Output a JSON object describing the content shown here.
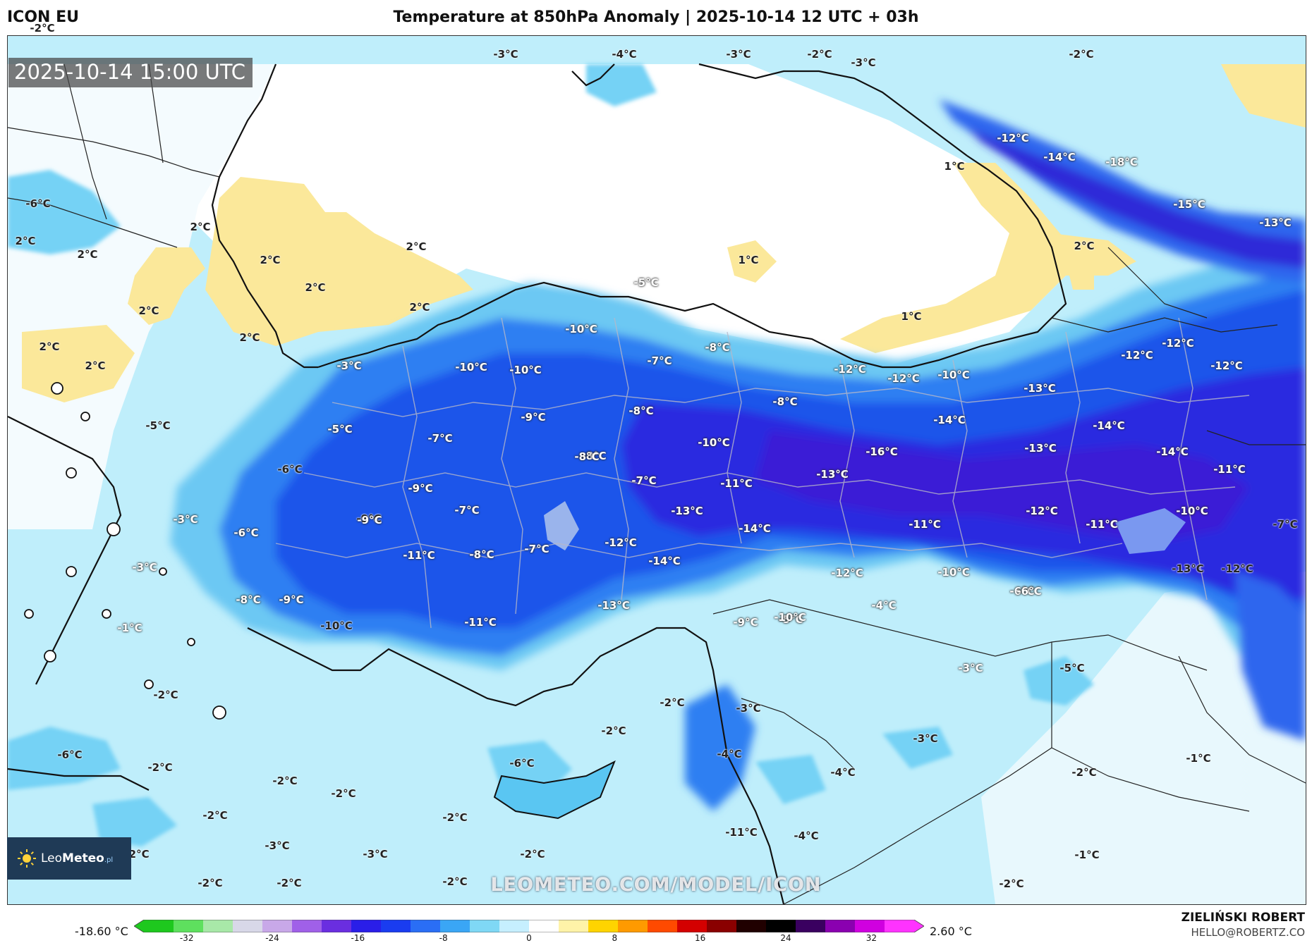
{
  "header": {
    "model": "ICON EU",
    "title": "Temperature at 850hPa Anomaly | 2025-10-14 12 UTC + 03h"
  },
  "map": {
    "valid_time": "2025-10-14 15:00 UTC",
    "watermark": "LEOMETEO.COM/MODEL/ICON",
    "labels": [
      {
        "text": "-2°C"
      },
      {
        "text": "-3°C"
      },
      {
        "text": "-4°C"
      },
      {
        "text": "-3°C"
      },
      {
        "text": "-2°C"
      },
      {
        "text": "-3°C"
      },
      {
        "text": "-2°C"
      },
      {
        "text": "-12°C"
      },
      {
        "text": "-14°C"
      },
      {
        "text": "-18°C"
      },
      {
        "text": "-15°C"
      },
      {
        "text": "-13°C"
      },
      {
        "text": "1°C"
      },
      {
        "text": "-6°C"
      },
      {
        "text": "2°C"
      },
      {
        "text": "2°C"
      },
      {
        "text": "2°C"
      },
      {
        "text": "2°C"
      },
      {
        "text": "2°C"
      },
      {
        "text": "2°C"
      },
      {
        "text": "1°C"
      },
      {
        "text": "2°C"
      },
      {
        "text": "2°C"
      },
      {
        "text": "2°C"
      },
      {
        "text": "2°C"
      },
      {
        "text": "2°C"
      },
      {
        "text": "2°C"
      },
      {
        "text": "-5°C"
      },
      {
        "text": "1°C"
      },
      {
        "text": "-3°C"
      },
      {
        "text": "-10°C"
      },
      {
        "text": "-8°C"
      },
      {
        "text": "-7°C"
      },
      {
        "text": "-12°C"
      },
      {
        "text": "-12°C"
      },
      {
        "text": "-10°C"
      },
      {
        "text": "-13°C"
      },
      {
        "text": "-12°C"
      },
      {
        "text": "-12°C"
      },
      {
        "text": "-12°C"
      },
      {
        "text": "-10°C"
      },
      {
        "text": "-10°C"
      },
      {
        "text": "-9°C"
      },
      {
        "text": "-8°C"
      },
      {
        "text": "-8°C"
      },
      {
        "text": "-14°C"
      },
      {
        "text": "-14°C"
      },
      {
        "text": "-5°C"
      },
      {
        "text": "-5°C"
      },
      {
        "text": "-7°C"
      },
      {
        "text": "-10°C"
      },
      {
        "text": "-16°C"
      },
      {
        "text": "-13°C"
      },
      {
        "text": "-14°C"
      },
      {
        "text": "-6°C"
      },
      {
        "text": "-8°C"
      },
      {
        "text": "-9°C"
      },
      {
        "text": "-7°C"
      },
      {
        "text": "-11°C"
      },
      {
        "text": "-13°C"
      },
      {
        "text": "-11°C"
      },
      {
        "text": "-9°C"
      },
      {
        "text": "-7°C"
      },
      {
        "text": "-8°C"
      },
      {
        "text": "-13°C"
      },
      {
        "text": "-12°C"
      },
      {
        "text": "-11°C"
      },
      {
        "text": "-10°C"
      },
      {
        "text": "-7°C"
      },
      {
        "text": "-3°C"
      },
      {
        "text": "-6°C"
      },
      {
        "text": "-9°C"
      },
      {
        "text": "-14°C"
      },
      {
        "text": "-11°C"
      },
      {
        "text": "-12°C"
      },
      {
        "text": "-11°C"
      },
      {
        "text": "-8°C"
      },
      {
        "text": "-7°C"
      },
      {
        "text": "-12°C"
      },
      {
        "text": "-14°C"
      },
      {
        "text": "-10°C"
      },
      {
        "text": "-13°C"
      },
      {
        "text": "-12°C"
      },
      {
        "text": "-3°C"
      },
      {
        "text": "-8°C"
      },
      {
        "text": "-9°C"
      },
      {
        "text": "-13°C"
      },
      {
        "text": "-4°C"
      },
      {
        "text": "-6°C"
      },
      {
        "text": "-1°C"
      },
      {
        "text": "-10°C"
      },
      {
        "text": "-11°C"
      },
      {
        "text": "-9°C"
      },
      {
        "text": "-5°C"
      },
      {
        "text": "-10°C"
      },
      {
        "text": "-6°C"
      },
      {
        "text": "-3°C"
      },
      {
        "text": "-5°C"
      },
      {
        "text": "-2°C"
      },
      {
        "text": "-3°C"
      },
      {
        "text": "-2°C"
      },
      {
        "text": "-2°C"
      },
      {
        "text": "-3°C"
      },
      {
        "text": "-6°C"
      },
      {
        "text": "-6°C"
      },
      {
        "text": "-2°C"
      },
      {
        "text": "-4°C"
      },
      {
        "text": "-4°C"
      },
      {
        "text": "-1°C"
      },
      {
        "text": "-2°C"
      },
      {
        "text": "-2°C"
      },
      {
        "text": "-2°C"
      },
      {
        "text": "-2°C"
      },
      {
        "text": "-2°C"
      },
      {
        "text": "-11°C"
      },
      {
        "text": "-4°C"
      },
      {
        "text": "-3°C"
      },
      {
        "text": "-3°C"
      },
      {
        "text": "-2°C"
      },
      {
        "text": "-2°C"
      },
      {
        "text": "-1°C"
      },
      {
        "text": "-2°C"
      },
      {
        "text": "-2°C"
      },
      {
        "text": "-2°C"
      },
      {
        "text": "-2°C"
      }
    ]
  },
  "logo": {
    "brand_a": "Leo",
    "brand_b": "Meteo",
    "brand_tld": ".pl"
  },
  "colorbar": {
    "min_label": "-18.60 °C",
    "max_label": "2.60 °C",
    "ticks": [
      "-32",
      "-24",
      "-16",
      "-8",
      "0",
      "8",
      "16",
      "24",
      "32"
    ],
    "range": [
      -36,
      36
    ],
    "tick_values": [
      -32,
      -24,
      -16,
      -8,
      0,
      8,
      16,
      24,
      32
    ],
    "colors": [
      "#1ec81e",
      "#5ee05e",
      "#a8e8a8",
      "#d8d8e8",
      "#c8a8e8",
      "#a060e8",
      "#6a2ee0",
      "#2a1ee8",
      "#1a3cf0",
      "#2a6ef5",
      "#3aa6f5",
      "#7fd8f5",
      "#c6efff",
      "#ffffff",
      "#fff3a8",
      "#ffd400",
      "#ff9a00",
      "#ff4a00",
      "#d40000",
      "#8a0000",
      "#200000",
      "#000000",
      "#3a0060",
      "#8a00b0",
      "#d000e0",
      "#ff33ff"
    ]
  },
  "footer": {
    "author": "ZIELIŃSKI ROBERT",
    "email": "HELLO@ROBERTZ.CO"
  }
}
